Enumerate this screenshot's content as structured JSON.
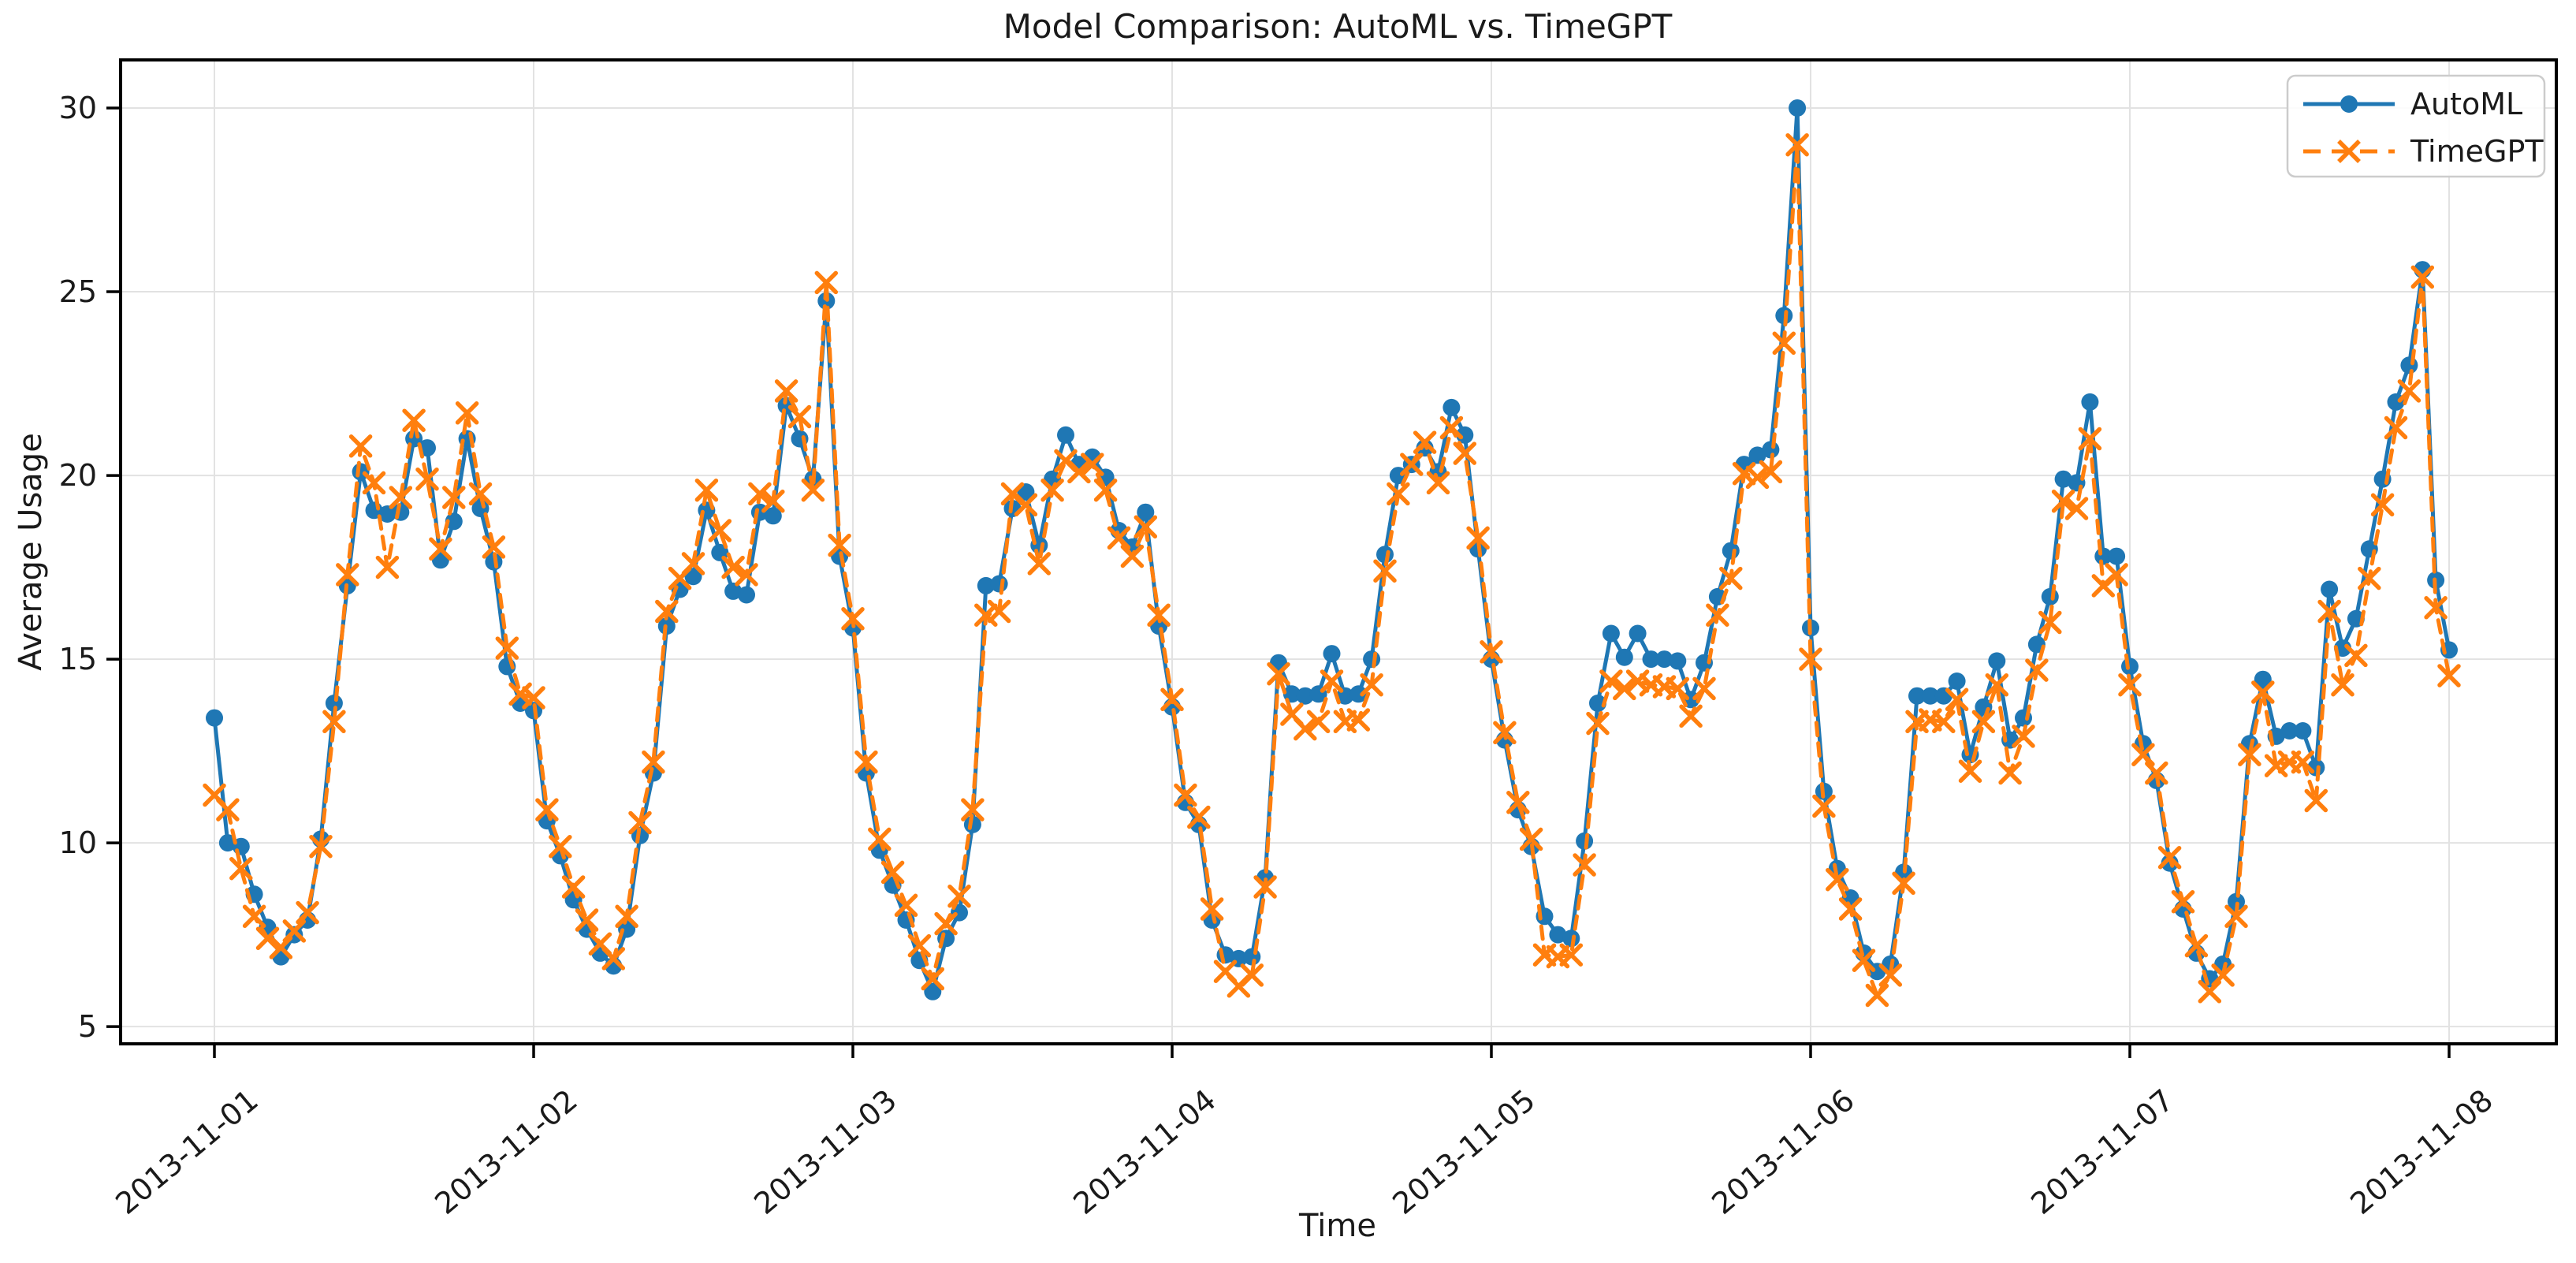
{
  "title": "Model Comparison: AutoML vs. TimeGPT",
  "xlabel": "Time",
  "ylabel": "Average Usage",
  "legend": {
    "items": [
      {
        "label": "AutoML"
      },
      {
        "label": "TimeGPT"
      }
    ]
  },
  "colors": {
    "automl": "#1f77b4",
    "timegpt": "#ff7f0e",
    "grid": "#e2e2e2",
    "spine": "#000000",
    "legend_border": "#cccccc"
  },
  "chart_data": {
    "type": "line",
    "title": "Model Comparison: AutoML vs. TimeGPT",
    "xlabel": "Time",
    "ylabel": "Average Usage",
    "grid": true,
    "legend_position": "upper right",
    "x_unit": "hourly points from 2013-11-01 00:00 to 2013-11-08 00:00",
    "x_tick_labels": [
      "2013-11-01",
      "2013-11-02",
      "2013-11-03",
      "2013-11-04",
      "2013-11-05",
      "2013-11-06",
      "2013-11-07",
      "2013-11-08"
    ],
    "x_tick_hours": [
      0,
      24,
      48,
      72,
      96,
      120,
      144,
      168
    ],
    "yticks": [
      5,
      10,
      15,
      20,
      25,
      30
    ],
    "ylim": [
      4.53,
      31.31
    ],
    "series": [
      {
        "name": "AutoML",
        "color": "#1f77b4",
        "line": "solid",
        "marker": "circle",
        "values": [
          13.4,
          10.0,
          9.9,
          8.6,
          7.7,
          6.9,
          7.5,
          7.9,
          10.1,
          13.8,
          17.0,
          20.1,
          19.05,
          18.95,
          19.0,
          21.0,
          20.75,
          17.7,
          18.75,
          21.0,
          19.1,
          17.65,
          14.8,
          13.8,
          13.6,
          10.6,
          9.65,
          8.45,
          7.65,
          7.0,
          6.65,
          7.65,
          10.2,
          11.9,
          15.9,
          16.9,
          17.25,
          19.05,
          17.9,
          16.85,
          16.75,
          19.0,
          18.9,
          21.9,
          21.0,
          19.9,
          24.75,
          17.8,
          15.85,
          11.9,
          9.8,
          8.85,
          7.9,
          6.8,
          5.95,
          7.4,
          8.1,
          10.5,
          17.0,
          17.05,
          19.1,
          19.55,
          18.1,
          19.9,
          21.1,
          20.3,
          20.5,
          19.95,
          18.5,
          18.05,
          19.0,
          15.9,
          13.7,
          11.1,
          10.5,
          7.9,
          6.95,
          6.85,
          6.9,
          9.05,
          14.9,
          14.05,
          14.0,
          14.05,
          15.15,
          14.0,
          14.05,
          15.0,
          17.85,
          20.0,
          20.3,
          20.75,
          20.1,
          21.85,
          21.1,
          18.0,
          15.0,
          12.8,
          10.9,
          9.9,
          8.0,
          7.5,
          7.4,
          10.05,
          13.8,
          15.7,
          15.05,
          15.7,
          15.0,
          15.0,
          14.95,
          13.9,
          14.9,
          16.7,
          17.95,
          20.3,
          20.55,
          20.7,
          24.35,
          30.0,
          15.85,
          11.4,
          9.3,
          8.5,
          7.0,
          6.5,
          6.7,
          9.2,
          14.0,
          14.0,
          14.0,
          14.4,
          12.4,
          13.7,
          14.95,
          12.8,
          13.4,
          15.4,
          16.7,
          19.9,
          19.8,
          22.0,
          17.8,
          17.8,
          14.8,
          12.7,
          11.7,
          9.45,
          8.2,
          7.0,
          6.3,
          6.7,
          8.4,
          12.7,
          14.45,
          12.9,
          13.05,
          13.05,
          12.05,
          16.9,
          15.3,
          16.1,
          18.0,
          19.9,
          22.0,
          23.0,
          25.6,
          17.15,
          15.25
        ]
      },
      {
        "name": "TimeGPT",
        "color": "#ff7f0e",
        "line": "dashed",
        "marker": "x",
        "values": [
          11.3,
          10.9,
          9.3,
          8.0,
          7.4,
          7.15,
          7.6,
          8.1,
          9.9,
          13.3,
          17.3,
          20.8,
          19.8,
          17.5,
          19.4,
          21.5,
          19.9,
          18.0,
          19.4,
          21.7,
          19.5,
          18.05,
          15.3,
          14.05,
          13.95,
          10.9,
          9.9,
          8.8,
          7.9,
          7.25,
          6.85,
          8.0,
          10.55,
          12.2,
          16.3,
          17.2,
          17.6,
          19.6,
          18.5,
          17.5,
          17.3,
          19.5,
          19.3,
          22.3,
          21.6,
          19.6,
          25.25,
          18.1,
          16.1,
          12.2,
          10.1,
          9.2,
          8.3,
          7.2,
          6.3,
          7.8,
          8.55,
          10.9,
          16.2,
          16.3,
          19.5,
          19.2,
          17.6,
          19.6,
          20.4,
          20.1,
          20.3,
          19.6,
          18.3,
          17.8,
          18.6,
          16.2,
          13.9,
          11.3,
          10.7,
          8.2,
          6.5,
          6.1,
          6.4,
          8.8,
          14.6,
          13.5,
          13.1,
          13.3,
          14.4,
          13.3,
          13.35,
          14.3,
          17.4,
          19.5,
          20.3,
          20.9,
          19.8,
          21.3,
          20.6,
          18.3,
          15.2,
          13.0,
          11.1,
          10.1,
          6.95,
          6.9,
          6.95,
          9.4,
          13.25,
          14.4,
          14.2,
          14.4,
          14.3,
          14.25,
          14.2,
          13.45,
          14.2,
          16.2,
          17.2,
          20.05,
          19.95,
          20.1,
          23.6,
          29.0,
          15.0,
          11.0,
          9.0,
          8.2,
          6.8,
          5.85,
          6.4,
          8.9,
          13.3,
          13.35,
          13.3,
          13.9,
          11.95,
          13.3,
          14.3,
          11.9,
          12.9,
          14.7,
          16.0,
          19.3,
          19.1,
          21.0,
          17.0,
          17.3,
          14.3,
          12.4,
          11.9,
          9.6,
          8.4,
          7.2,
          5.95,
          6.4,
          8.0,
          12.4,
          14.1,
          12.1,
          12.2,
          12.2,
          11.15,
          16.3,
          14.3,
          15.1,
          17.2,
          19.2,
          21.3,
          22.3,
          25.4,
          16.4,
          14.55
        ]
      }
    ]
  }
}
